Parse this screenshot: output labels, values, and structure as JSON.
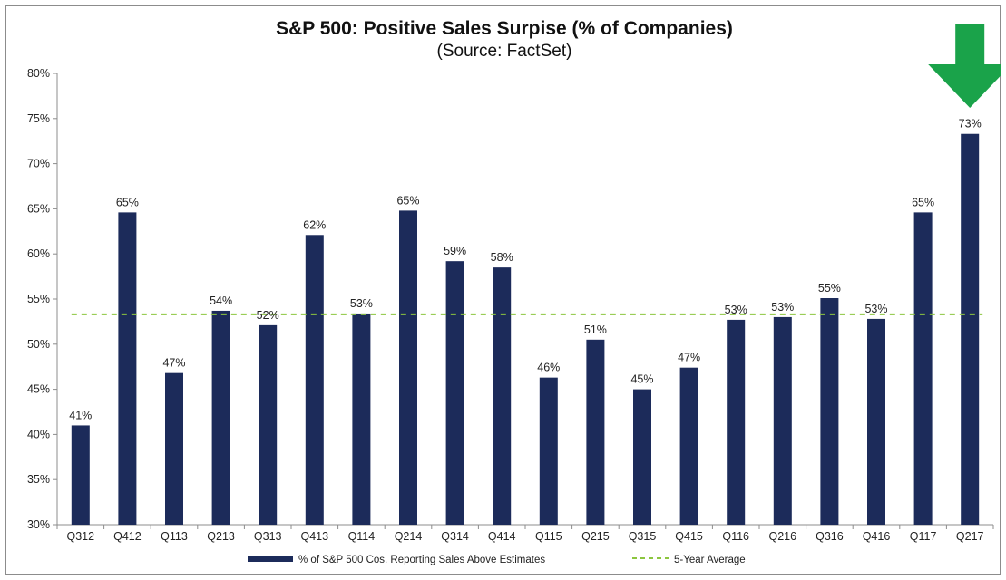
{
  "chart_data": {
    "type": "bar",
    "title": "S&P 500: Positive Sales Surpise (% of Companies)",
    "subtitle": "(Source: FactSet)",
    "categories": [
      "Q312",
      "Q412",
      "Q113",
      "Q213",
      "Q313",
      "Q413",
      "Q114",
      "Q214",
      "Q314",
      "Q414",
      "Q115",
      "Q215",
      "Q315",
      "Q415",
      "Q116",
      "Q216",
      "Q316",
      "Q416",
      "Q117",
      "Q217"
    ],
    "series": [
      {
        "name": "% of S&P 500 Cos. Reporting Sales Above Estimates",
        "values": [
          41.0,
          64.6,
          46.8,
          53.7,
          52.1,
          62.1,
          53.4,
          64.8,
          59.2,
          58.5,
          46.3,
          50.5,
          45.0,
          47.4,
          52.7,
          53.0,
          55.1,
          52.8,
          64.6,
          73.3
        ],
        "labels": [
          "41%",
          "65%",
          "47%",
          "54%",
          "52%",
          "62%",
          "53%",
          "65%",
          "59%",
          "58%",
          "46%",
          "51%",
          "45%",
          "47%",
          "53%",
          "53%",
          "55%",
          "53%",
          "65%",
          "73%"
        ],
        "color": "#1c2b5a"
      }
    ],
    "reference_line": {
      "name": "5-Year Average",
      "value": 53.3,
      "color": "#8cc63f",
      "style": "dashed"
    },
    "ylim": [
      30,
      80
    ],
    "yticks": [
      30,
      35,
      40,
      45,
      50,
      55,
      60,
      65,
      70,
      75,
      80
    ],
    "ytick_labels": [
      "30%",
      "35%",
      "40%",
      "45%",
      "50%",
      "55%",
      "60%",
      "65%",
      "70%",
      "75%",
      "80%"
    ],
    "grid": false,
    "legend_position": "bottom",
    "annotation": {
      "type": "arrow",
      "direction": "down",
      "color": "#1aa34a",
      "target": "Q217"
    }
  }
}
